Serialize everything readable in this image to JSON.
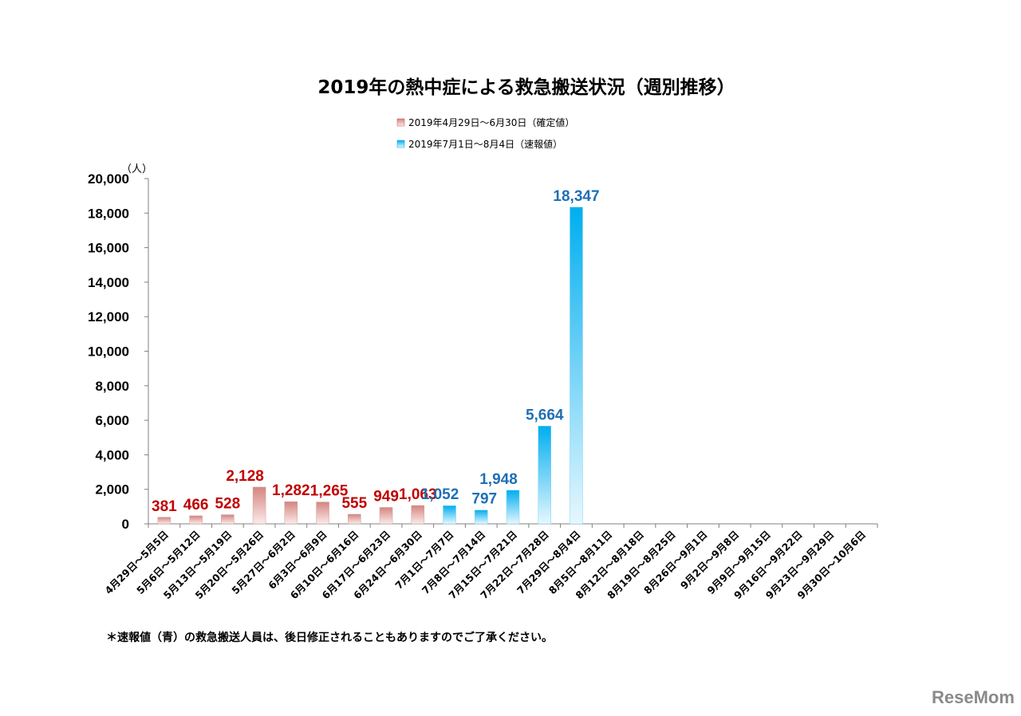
{
  "chart_data": {
    "type": "bar",
    "title": "2019年の熱中症による救急搬送状況（週別推移）",
    "unit_label": "（人）",
    "ylim": [
      0,
      20000
    ],
    "y_ticks": [
      "0",
      "2,000",
      "4,000",
      "6,000",
      "8,000",
      "10,000",
      "12,000",
      "14,000",
      "16,000",
      "18,000",
      "20,000"
    ],
    "y_tick_values": [
      0,
      2000,
      4000,
      6000,
      8000,
      10000,
      12000,
      14000,
      16000,
      18000,
      20000
    ],
    "grid": false,
    "legend_position": "top-center",
    "categories": [
      "4月29日～5月5日",
      "5月6日～5月12日",
      "5月13日～5月19日",
      "5月20日～5月26日",
      "5月27日～6月2日",
      "6月3日～6月9日",
      "6月10日～6月16日",
      "6月17日～6月23日",
      "6月24日～6月30日",
      "7月1日～7月7日",
      "7月8日～7月14日",
      "7月15日～7月21日",
      "7月22日～7月28日",
      "7月29日～8月4日",
      "8月5日～8月11日",
      "8月12日～8月18日",
      "8月19日～8月25日",
      "8月26日～9月1日",
      "9月2日～9月8日",
      "9月9日～9月15日",
      "9月16日～9月22日",
      "9月23日～9月29日",
      "9月30日～10月6日"
    ],
    "series": [
      {
        "name": "2019年4月29日～6月30日（確定値）",
        "color": "#c0504d",
        "label_color": "#c00000",
        "values": [
          381,
          466,
          528,
          2128,
          1282,
          1265,
          555,
          949,
          1063,
          null,
          null,
          null,
          null,
          null,
          null,
          null,
          null,
          null,
          null,
          null,
          null,
          null,
          null
        ],
        "labels": [
          "381",
          "466",
          "528",
          "2,128",
          "1,282",
          "1,265",
          "555",
          "949",
          "1,063",
          "",
          "",
          "",
          "",
          "",
          "",
          "",
          "",
          "",
          "",
          "",
          "",
          "",
          ""
        ]
      },
      {
        "name": "2019年7月1日～8月4日（速報値）",
        "color": "#00b0f0",
        "label_color": "#1f6fb5",
        "values": [
          null,
          null,
          null,
          null,
          null,
          null,
          null,
          null,
          null,
          1052,
          797,
          1948,
          5664,
          18347,
          null,
          null,
          null,
          null,
          null,
          null,
          null,
          null,
          null
        ],
        "labels": [
          "",
          "",
          "",
          "",
          "",
          "",
          "",
          "",
          "",
          "1,052",
          "797",
          "1,948",
          "5,664",
          "18,347",
          "",
          "",
          "",
          "",
          "",
          "",
          "",
          "",
          ""
        ]
      }
    ],
    "note": "＊速報値（青）の救急搬送人員は、後日修正されることもありますのでご了承ください。"
  },
  "watermark": "ReseMom"
}
